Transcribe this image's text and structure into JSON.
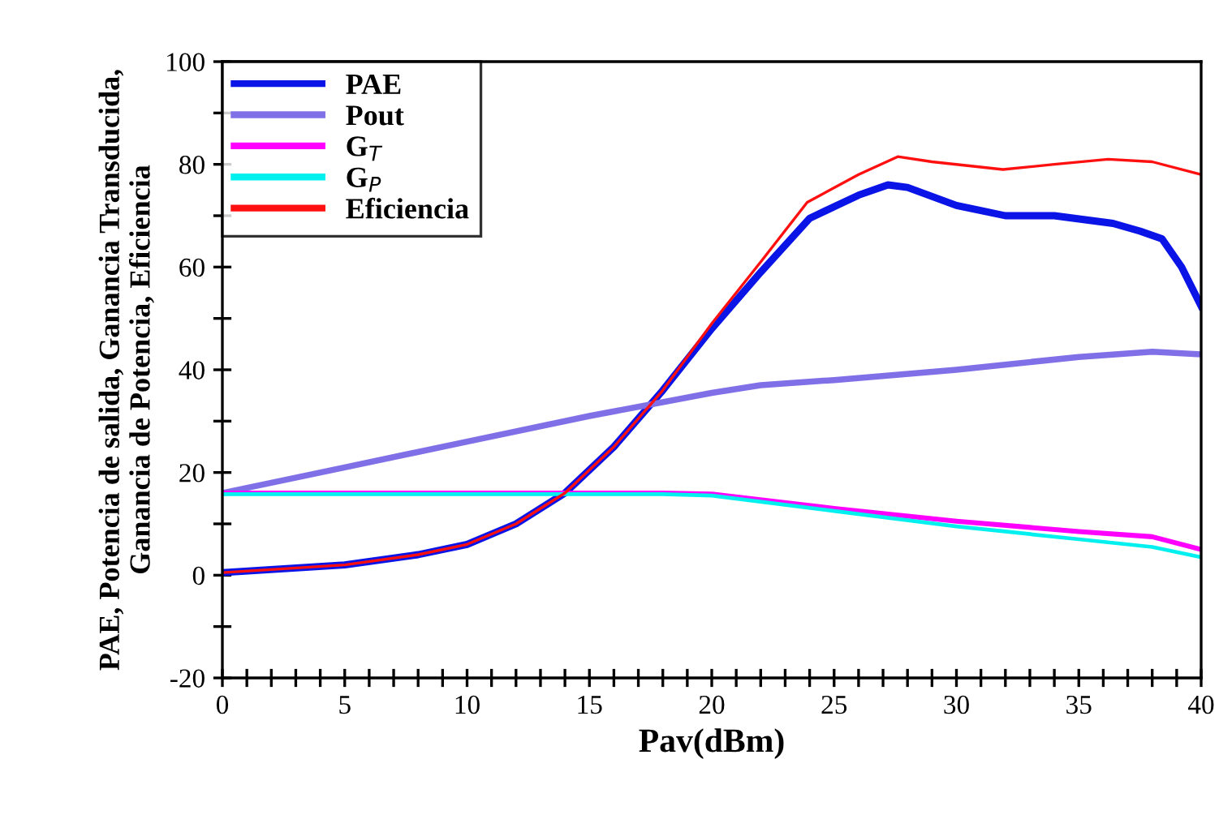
{
  "chart_data": {
    "type": "line",
    "xlabel": "Pav(dBm)",
    "ylabel": "PAE, Potencia de salida, Ganancia Transducida,\nGanancia de Potencia, Eficiencia",
    "xlim": [
      0,
      40
    ],
    "ylim": [
      -20,
      100
    ],
    "xticks": [
      0,
      {
        "value": 1,
        "label": null
      },
      {
        "value": 2,
        "label": null
      },
      {
        "value": 3,
        "label": null
      },
      {
        "value": 4,
        "label": null
      },
      5,
      {
        "value": 6,
        "label": null
      },
      {
        "value": 7,
        "label": null
      },
      {
        "value": 8,
        "label": null
      },
      {
        "value": 9,
        "label": null
      },
      10,
      {
        "value": 11,
        "label": null
      },
      {
        "value": 12,
        "label": null
      },
      {
        "value": 13,
        "label": null
      },
      {
        "value": 14,
        "label": null
      },
      15,
      {
        "value": 16,
        "label": null
      },
      {
        "value": 17,
        "label": null
      },
      {
        "value": 18,
        "label": null
      },
      {
        "value": 19,
        "label": null
      },
      20,
      {
        "value": 21,
        "label": null
      },
      {
        "value": 22,
        "label": null
      },
      {
        "value": 23,
        "label": null
      },
      {
        "value": 24,
        "label": null
      },
      25,
      {
        "value": 26,
        "label": null
      },
      {
        "value": 27,
        "label": null
      },
      {
        "value": 28,
        "label": null
      },
      {
        "value": 29,
        "label": null
      },
      30,
      {
        "value": 31,
        "label": null
      },
      {
        "value": 32,
        "label": null
      },
      {
        "value": 33,
        "label": null
      },
      {
        "value": 34,
        "label": null
      },
      35,
      {
        "value": 36,
        "label": null
      },
      {
        "value": 37,
        "label": null
      },
      {
        "value": 38,
        "label": null
      },
      {
        "value": 39,
        "label": null
      },
      40
    ],
    "yticks": [
      -20,
      {
        "value": -10,
        "label": null
      },
      0,
      {
        "value": 10,
        "label": null
      },
      20,
      {
        "value": 30,
        "label": null
      },
      40,
      {
        "value": 50,
        "label": null
      },
      60,
      {
        "value": 70,
        "label": null
      },
      80,
      {
        "value": 90,
        "label": null
      },
      100
    ],
    "grid": false,
    "legend": "top left",
    "marker": "none",
    "line_style": "solid",
    "series": [
      {
        "name": "PAE",
        "color": "#0a14e6",
        "x": [
          0,
          5,
          8,
          10,
          12,
          14,
          16,
          18,
          20,
          22,
          24,
          26,
          27.2,
          28,
          30,
          32,
          34,
          36.4,
          37.5,
          38.4,
          39.2,
          40
        ],
        "values": [
          0.5,
          2,
          4,
          6,
          10,
          16,
          25,
          36,
          48,
          59,
          69.5,
          74,
          76,
          75.5,
          72,
          70,
          70,
          68.5,
          67,
          65.5,
          60,
          52.4
        ]
      },
      {
        "name": "Pout",
        "color": "#8070e8",
        "x": [
          0,
          5,
          10,
          15,
          20,
          22,
          25,
          30,
          35,
          38,
          40
        ],
        "values": [
          16,
          21,
          26,
          31,
          35.5,
          37,
          38,
          40,
          42.5,
          43.5,
          43
        ]
      },
      {
        "name": "G$_{T}$",
        "color": "#ff00ff",
        "x": [
          0,
          10,
          18,
          20,
          25,
          30,
          35,
          38,
          40
        ],
        "values": [
          16,
          16,
          16,
          15.8,
          13,
          10.5,
          8.5,
          7.5,
          5
        ]
      },
      {
        "name": "G$_{P}$",
        "color": "#00f0f0",
        "x": [
          0,
          10,
          18,
          20,
          25,
          30,
          35,
          38,
          40
        ],
        "values": [
          15.8,
          15.8,
          15.8,
          15.5,
          12.5,
          9.5,
          7,
          5.5,
          3.5
        ]
      },
      {
        "name": "Eficiencia",
        "color": "#ff1010",
        "x": [
          0,
          5,
          8,
          10,
          12,
          14,
          16,
          18,
          20,
          22,
          23.9,
          26,
          27.6,
          29,
          31.9,
          34,
          36.2,
          38,
          40
        ],
        "values": [
          0.5,
          2,
          4,
          6,
          10,
          16,
          25,
          36,
          49,
          61,
          72.6,
          78,
          81.5,
          80.5,
          79,
          80,
          81,
          80.5,
          78
        ]
      }
    ]
  }
}
